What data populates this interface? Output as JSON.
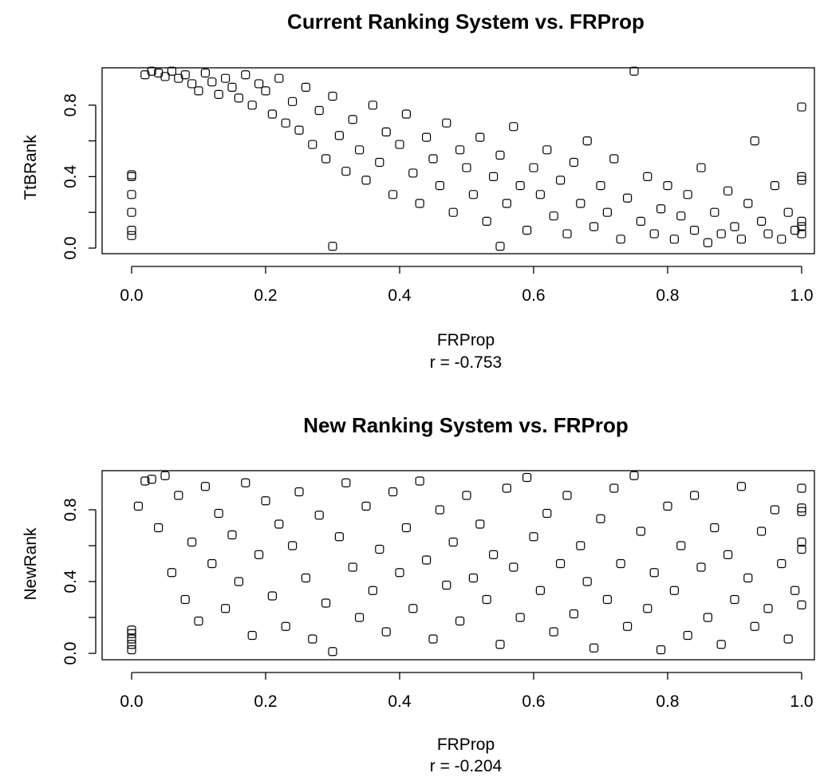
{
  "figure": {
    "panels": [
      {
        "title": "Current Ranking System vs. FRProp",
        "xlabel": "FRProp",
        "subcaption": "r = -0.753",
        "ylabel": "TtBRank"
      },
      {
        "title": "New Ranking System vs. FRProp",
        "xlabel": "FRProp",
        "subcaption": "r = -0.204",
        "ylabel": "NewRank"
      }
    ]
  },
  "chart_data": [
    {
      "type": "scatter",
      "title": "Current Ranking System vs. FRProp",
      "xlabel": "FRProp",
      "ylabel": "TtBRank",
      "annotation": "r = -0.753",
      "correlation": -0.753,
      "xlim": [
        0.0,
        1.0
      ],
      "ylim": [
        0.0,
        1.0
      ],
      "xticks": [
        "0.0",
        "0.2",
        "0.4",
        "0.6",
        "0.8",
        "1.0"
      ],
      "yticks": [
        "0.0",
        "0.4",
        "0.8"
      ],
      "marker": "open-square",
      "points": [
        [
          0.0,
          0.41
        ],
        [
          0.0,
          0.4
        ],
        [
          0.0,
          0.3
        ],
        [
          0.0,
          0.2
        ],
        [
          0.0,
          0.1
        ],
        [
          0.0,
          0.07
        ],
        [
          0.02,
          0.97
        ],
        [
          0.03,
          0.99
        ],
        [
          0.04,
          0.98
        ],
        [
          0.05,
          0.96
        ],
        [
          0.06,
          0.99
        ],
        [
          0.07,
          0.95
        ],
        [
          0.08,
          0.97
        ],
        [
          0.09,
          0.92
        ],
        [
          0.1,
          0.88
        ],
        [
          0.11,
          0.98
        ],
        [
          0.12,
          0.93
        ],
        [
          0.13,
          0.86
        ],
        [
          0.14,
          0.95
        ],
        [
          0.15,
          0.9
        ],
        [
          0.16,
          0.84
        ],
        [
          0.17,
          0.97
        ],
        [
          0.18,
          0.8
        ],
        [
          0.19,
          0.92
        ],
        [
          0.2,
          0.88
        ],
        [
          0.21,
          0.75
        ],
        [
          0.22,
          0.95
        ],
        [
          0.23,
          0.7
        ],
        [
          0.24,
          0.82
        ],
        [
          0.25,
          0.66
        ],
        [
          0.26,
          0.9
        ],
        [
          0.27,
          0.58
        ],
        [
          0.28,
          0.77
        ],
        [
          0.29,
          0.5
        ],
        [
          0.3,
          0.85
        ],
        [
          0.31,
          0.63
        ],
        [
          0.32,
          0.43
        ],
        [
          0.33,
          0.72
        ],
        [
          0.34,
          0.55
        ],
        [
          0.35,
          0.38
        ],
        [
          0.36,
          0.8
        ],
        [
          0.37,
          0.48
        ],
        [
          0.38,
          0.65
        ],
        [
          0.39,
          0.3
        ],
        [
          0.4,
          0.58
        ],
        [
          0.41,
          0.75
        ],
        [
          0.42,
          0.42
        ],
        [
          0.43,
          0.25
        ],
        [
          0.44,
          0.62
        ],
        [
          0.45,
          0.5
        ],
        [
          0.46,
          0.35
        ],
        [
          0.47,
          0.7
        ],
        [
          0.48,
          0.2
        ],
        [
          0.49,
          0.55
        ],
        [
          0.5,
          0.45
        ],
        [
          0.51,
          0.3
        ],
        [
          0.52,
          0.62
        ],
        [
          0.53,
          0.15
        ],
        [
          0.54,
          0.4
        ],
        [
          0.55,
          0.52
        ],
        [
          0.56,
          0.25
        ],
        [
          0.57,
          0.68
        ],
        [
          0.58,
          0.35
        ],
        [
          0.59,
          0.1
        ],
        [
          0.6,
          0.45
        ],
        [
          0.61,
          0.3
        ],
        [
          0.62,
          0.55
        ],
        [
          0.63,
          0.18
        ],
        [
          0.64,
          0.38
        ],
        [
          0.65,
          0.08
        ],
        [
          0.66,
          0.48
        ],
        [
          0.67,
          0.25
        ],
        [
          0.68,
          0.6
        ],
        [
          0.69,
          0.12
        ],
        [
          0.7,
          0.35
        ],
        [
          0.71,
          0.2
        ],
        [
          0.72,
          0.5
        ],
        [
          0.73,
          0.05
        ],
        [
          0.74,
          0.28
        ],
        [
          0.75,
          0.99
        ],
        [
          0.76,
          0.15
        ],
        [
          0.77,
          0.4
        ],
        [
          0.78,
          0.08
        ],
        [
          0.79,
          0.22
        ],
        [
          0.8,
          0.35
        ],
        [
          0.81,
          0.05
        ],
        [
          0.82,
          0.18
        ],
        [
          0.83,
          0.3
        ],
        [
          0.84,
          0.1
        ],
        [
          0.85,
          0.45
        ],
        [
          0.86,
          0.03
        ],
        [
          0.87,
          0.2
        ],
        [
          0.88,
          0.08
        ],
        [
          0.89,
          0.32
        ],
        [
          0.9,
          0.12
        ],
        [
          0.91,
          0.05
        ],
        [
          0.92,
          0.25
        ],
        [
          0.93,
          0.6
        ],
        [
          0.94,
          0.15
        ],
        [
          0.95,
          0.08
        ],
        [
          0.96,
          0.35
        ],
        [
          0.97,
          0.05
        ],
        [
          0.98,
          0.2
        ],
        [
          0.99,
          0.1
        ],
        [
          1.0,
          0.79
        ],
        [
          1.0,
          0.4
        ],
        [
          1.0,
          0.38
        ],
        [
          1.0,
          0.15
        ],
        [
          1.0,
          0.12
        ],
        [
          1.0,
          0.08
        ],
        [
          0.3,
          0.01
        ],
        [
          0.55,
          0.01
        ]
      ]
    },
    {
      "type": "scatter",
      "title": "New Ranking System vs. FRProp",
      "xlabel": "FRProp",
      "ylabel": "NewRank",
      "annotation": "r = -0.204",
      "correlation": -0.204,
      "xlim": [
        0.0,
        1.0
      ],
      "ylim": [
        0.0,
        1.0
      ],
      "xticks": [
        "0.0",
        "0.2",
        "0.4",
        "0.6",
        "0.8",
        "1.0"
      ],
      "yticks": [
        "0.0",
        "0.4",
        "0.8"
      ],
      "marker": "open-square",
      "points": [
        [
          0.0,
          0.13
        ],
        [
          0.0,
          0.11
        ],
        [
          0.0,
          0.08
        ],
        [
          0.0,
          0.05
        ],
        [
          0.0,
          0.02
        ],
        [
          0.01,
          0.82
        ],
        [
          0.02,
          0.96
        ],
        [
          0.03,
          0.97
        ],
        [
          0.04,
          0.7
        ],
        [
          0.05,
          0.99
        ],
        [
          0.06,
          0.45
        ],
        [
          0.07,
          0.88
        ],
        [
          0.08,
          0.3
        ],
        [
          0.09,
          0.62
        ],
        [
          0.1,
          0.18
        ],
        [
          0.11,
          0.93
        ],
        [
          0.12,
          0.5
        ],
        [
          0.13,
          0.78
        ],
        [
          0.14,
          0.25
        ],
        [
          0.15,
          0.66
        ],
        [
          0.16,
          0.4
        ],
        [
          0.17,
          0.95
        ],
        [
          0.18,
          0.1
        ],
        [
          0.19,
          0.55
        ],
        [
          0.2,
          0.85
        ],
        [
          0.21,
          0.32
        ],
        [
          0.22,
          0.72
        ],
        [
          0.23,
          0.15
        ],
        [
          0.24,
          0.6
        ],
        [
          0.25,
          0.9
        ],
        [
          0.26,
          0.42
        ],
        [
          0.27,
          0.08
        ],
        [
          0.28,
          0.77
        ],
        [
          0.29,
          0.28
        ],
        [
          0.3,
          0.01
        ],
        [
          0.31,
          0.65
        ],
        [
          0.32,
          0.95
        ],
        [
          0.33,
          0.48
        ],
        [
          0.34,
          0.2
        ],
        [
          0.35,
          0.82
        ],
        [
          0.36,
          0.35
        ],
        [
          0.37,
          0.58
        ],
        [
          0.38,
          0.12
        ],
        [
          0.39,
          0.9
        ],
        [
          0.4,
          0.45
        ],
        [
          0.41,
          0.7
        ],
        [
          0.42,
          0.25
        ],
        [
          0.43,
          0.96
        ],
        [
          0.44,
          0.52
        ],
        [
          0.45,
          0.08
        ],
        [
          0.46,
          0.8
        ],
        [
          0.47,
          0.38
        ],
        [
          0.48,
          0.62
        ],
        [
          0.49,
          0.18
        ],
        [
          0.5,
          0.88
        ],
        [
          0.51,
          0.42
        ],
        [
          0.52,
          0.72
        ],
        [
          0.53,
          0.3
        ],
        [
          0.54,
          0.55
        ],
        [
          0.55,
          0.05
        ],
        [
          0.56,
          0.92
        ],
        [
          0.57,
          0.48
        ],
        [
          0.58,
          0.2
        ],
        [
          0.59,
          0.98
        ],
        [
          0.6,
          0.65
        ],
        [
          0.61,
          0.35
        ],
        [
          0.62,
          0.78
        ],
        [
          0.63,
          0.12
        ],
        [
          0.64,
          0.5
        ],
        [
          0.65,
          0.88
        ],
        [
          0.66,
          0.22
        ],
        [
          0.67,
          0.6
        ],
        [
          0.68,
          0.4
        ],
        [
          0.69,
          0.03
        ],
        [
          0.7,
          0.75
        ],
        [
          0.71,
          0.3
        ],
        [
          0.72,
          0.92
        ],
        [
          0.73,
          0.5
        ],
        [
          0.74,
          0.15
        ],
        [
          0.75,
          0.99
        ],
        [
          0.76,
          0.68
        ],
        [
          0.77,
          0.25
        ],
        [
          0.78,
          0.45
        ],
        [
          0.79,
          0.02
        ],
        [
          0.8,
          0.82
        ],
        [
          0.81,
          0.35
        ],
        [
          0.82,
          0.6
        ],
        [
          0.83,
          0.1
        ],
        [
          0.84,
          0.88
        ],
        [
          0.85,
          0.48
        ],
        [
          0.86,
          0.2
        ],
        [
          0.87,
          0.7
        ],
        [
          0.88,
          0.05
        ],
        [
          0.89,
          0.55
        ],
        [
          0.9,
          0.3
        ],
        [
          0.91,
          0.93
        ],
        [
          0.92,
          0.42
        ],
        [
          0.93,
          0.15
        ],
        [
          0.94,
          0.68
        ],
        [
          0.95,
          0.25
        ],
        [
          0.96,
          0.8
        ],
        [
          0.97,
          0.5
        ],
        [
          0.98,
          0.08
        ],
        [
          0.99,
          0.35
        ],
        [
          1.0,
          0.92
        ],
        [
          1.0,
          0.81
        ],
        [
          1.0,
          0.79
        ],
        [
          1.0,
          0.62
        ],
        [
          1.0,
          0.58
        ],
        [
          1.0,
          0.27
        ]
      ]
    }
  ]
}
